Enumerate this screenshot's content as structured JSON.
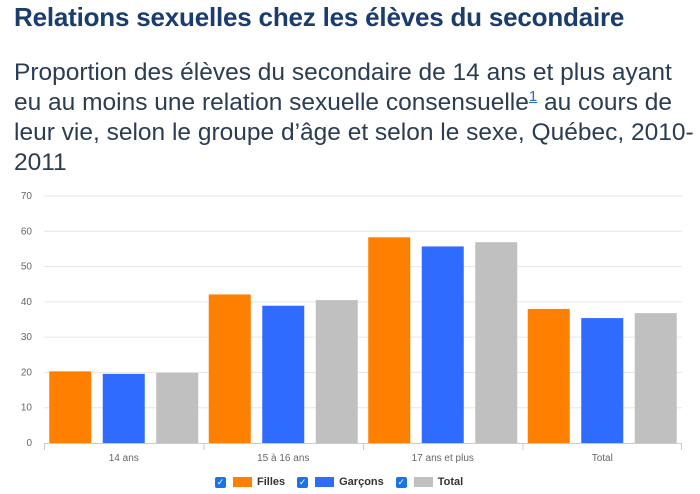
{
  "page": {
    "title": "Relations sexuelles chez les élèves du secondaire",
    "subtitle_before": "Proportion des élèves du secondaire de 14 ans et plus ayant eu au moins une relation sexuelle consensuelle",
    "footnote_ref": "1",
    "subtitle_after": " au cours de leur vie, selon le groupe d’âge et selon le sexe, Québec, 2010-2011"
  },
  "legend": {
    "check_glyph": "✓",
    "items": [
      {
        "label": "Filles",
        "color": "#ff7f00",
        "checked": true
      },
      {
        "label": "Garçons",
        "color": "#2f6bff",
        "checked": true
      },
      {
        "label": "Total",
        "color": "#c0c0c0",
        "checked": true
      }
    ]
  },
  "chart_data": {
    "type": "bar",
    "title": "",
    "xlabel": "",
    "ylabel": "",
    "ylim": [
      0,
      70
    ],
    "yticks": [
      0,
      10,
      20,
      30,
      40,
      50,
      60,
      70
    ],
    "grid": true,
    "legend_position": "bottom-center",
    "categories": [
      "14 ans",
      "15 à 16 ans",
      "17 ans et plus",
      "Total"
    ],
    "series": [
      {
        "name": "Filles",
        "color": "#ff7f00",
        "values": [
          20.3,
          42.1,
          58.3,
          38.0
        ]
      },
      {
        "name": "Garçons",
        "color": "#2f6bff",
        "values": [
          19.6,
          38.9,
          55.7,
          35.4
        ]
      },
      {
        "name": "Total",
        "color": "#c0c0c0",
        "values": [
          19.9,
          40.5,
          56.9,
          36.8
        ]
      }
    ]
  }
}
